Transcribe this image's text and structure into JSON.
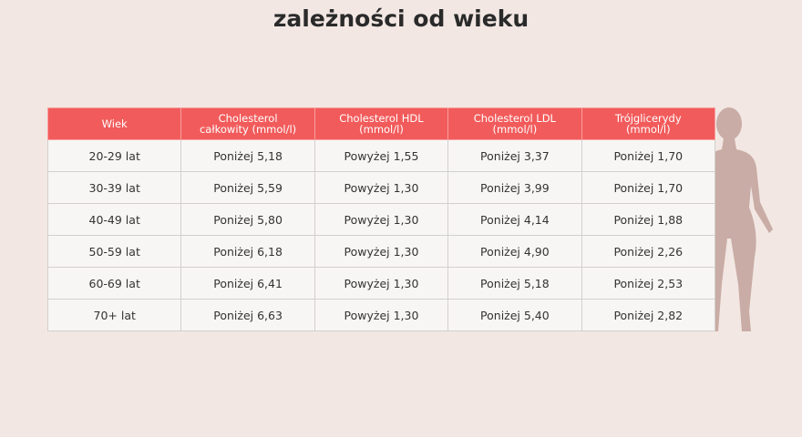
{
  "header": {
    "title": "zależności od wieku"
  },
  "table": {
    "columns": [
      "Wiek",
      "Cholesterol całkowity (mmol/l)",
      "Cholesterol HDL (mmol/l)",
      "Cholesterol LDL (mmol/l)",
      "Trójglicerydy (mmol/l)"
    ],
    "rows": [
      [
        "20-29 lat",
        "Poniżej 5,18",
        "Powyżej 1,55",
        "Poniżej 3,37",
        "Poniżej 1,70"
      ],
      [
        "30-39 lat",
        "Poniżej 5,59",
        "Powyżej 1,30",
        "Poniżej 3,99",
        "Poniżej 1,70"
      ],
      [
        "40-49 lat",
        "Poniżej 5,80",
        "Powyżej 1,30",
        "Poniżej 4,14",
        "Poniżej 1,88"
      ],
      [
        "50-59 lat",
        "Poniżej 6,18",
        "Powyżej 1,30",
        "Poniżej 4,90",
        "Poniżej 2,26"
      ],
      [
        "60-69 lat",
        "Poniżej 6,41",
        "Powyżej 1,30",
        "Poniżej 5,18",
        "Poniżej 2,53"
      ],
      [
        "70+ lat",
        "Poniżej 6,63",
        "Powyżej 1,30",
        "Poniżej 5,40",
        "Poniżej 2,82"
      ]
    ]
  }
}
